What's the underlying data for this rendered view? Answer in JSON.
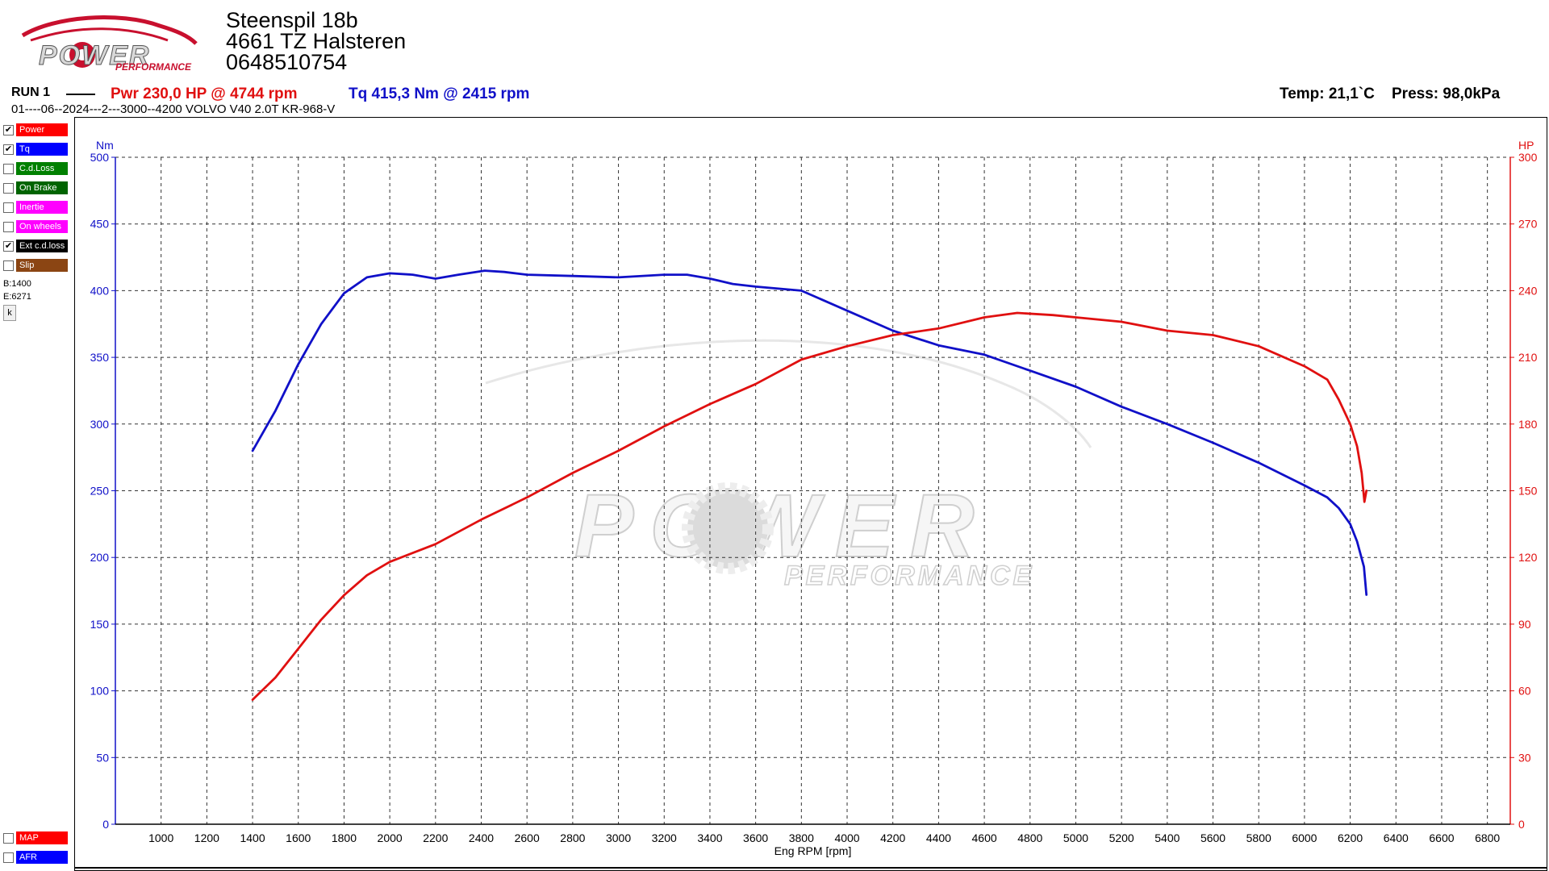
{
  "header": {
    "address": [
      "Steenspil 18b",
      "4661 TZ Halsteren",
      "0648510754"
    ],
    "logo": {
      "top": "POWER",
      "sub": "PERFORMANCE"
    },
    "run_label": "RUN 1",
    "power_summary": "Pwr  230,0 HP @ 4744 rpm",
    "torque_summary": "Tq 415,3 Nm @ 2415 rpm",
    "temp": "Temp: 21,1`C",
    "press": "Press: 98,0kPa",
    "run_info": "01----06--2024---2---3000--4200 VOLVO V40 2.0T KR-968-V"
  },
  "sidebar": {
    "items": [
      {
        "label": "Power",
        "color": "#ff0000",
        "checked": true
      },
      {
        "label": "Tq",
        "color": "#0000ff",
        "checked": true
      },
      {
        "label": "C.d.Loss",
        "color": "#008000",
        "checked": false
      },
      {
        "label": "On Brake",
        "color": "#006400",
        "checked": false
      },
      {
        "label": "Inertie",
        "color": "#ff00ff",
        "checked": false
      },
      {
        "label": "On wheels",
        "color": "#ff00ff",
        "checked": false
      },
      {
        "label": "Ext c.d.loss",
        "color": "#000000",
        "checked": true
      },
      {
        "label": "Slip",
        "color": "#8b4513",
        "checked": false
      }
    ],
    "begin": "B:1400",
    "end": "E:6271",
    "k_button": "k",
    "bottom_items": [
      {
        "label": "MAP",
        "color": "#ff0000",
        "checked": false
      },
      {
        "label": "AFR",
        "color": "#0000ff",
        "checked": false
      }
    ],
    "check_mark": "✔"
  },
  "chart_data": {
    "type": "line",
    "xlabel": "Eng RPM [rpm]",
    "ylabel_left": "Nm",
    "ylabel_right": "HP",
    "xlim": [
      800,
      6900
    ],
    "ylim_left": [
      0,
      500
    ],
    "ylim_right": [
      0,
      300
    ],
    "x_ticks": [
      1000,
      1200,
      1400,
      1600,
      1800,
      2000,
      2200,
      2400,
      2600,
      2800,
      3000,
      3200,
      3400,
      3600,
      3800,
      4000,
      4200,
      4400,
      4600,
      4800,
      5000,
      5200,
      5400,
      5600,
      5800,
      6000,
      6200,
      6400,
      6600,
      6800
    ],
    "y_ticks_left": [
      0,
      50,
      100,
      150,
      200,
      250,
      300,
      350,
      400,
      450,
      500
    ],
    "y_ticks_right": [
      0,
      30,
      60,
      90,
      120,
      150,
      180,
      210,
      240,
      270,
      300
    ],
    "grid": true,
    "series": [
      {
        "name": "Tq",
        "axis": "left",
        "color": "#1010c8",
        "x": [
          1400,
          1500,
          1600,
          1700,
          1800,
          1900,
          2000,
          2100,
          2200,
          2300,
          2415,
          2500,
          2600,
          2800,
          3000,
          3200,
          3300,
          3400,
          3500,
          3600,
          3800,
          4000,
          4200,
          4400,
          4600,
          4800,
          5000,
          5200,
          5400,
          5600,
          5800,
          6000,
          6100,
          6150,
          6200,
          6230,
          6260,
          6271
        ],
        "values": [
          280,
          310,
          345,
          375,
          398,
          410,
          413,
          412,
          409,
          412,
          415,
          414,
          412,
          411,
          410,
          412,
          412,
          409,
          405,
          403,
          400,
          385,
          370,
          359,
          352,
          340,
          328,
          313,
          300,
          286,
          271,
          254,
          245,
          237,
          225,
          212,
          193,
          172
        ]
      },
      {
        "name": "Power",
        "axis": "right",
        "color": "#e01010",
        "x": [
          1400,
          1500,
          1600,
          1700,
          1800,
          1900,
          2000,
          2200,
          2400,
          2600,
          2800,
          3000,
          3200,
          3400,
          3600,
          3800,
          4000,
          4200,
          4400,
          4600,
          4744,
          4900,
          5000,
          5200,
          5400,
          5600,
          5800,
          6000,
          6100,
          6150,
          6200,
          6230,
          6250,
          6262,
          6271
        ],
        "values": [
          56,
          66,
          79,
          92,
          103,
          112,
          118,
          126,
          137,
          147,
          158,
          168,
          179,
          189,
          198,
          209,
          215,
          220,
          223,
          228,
          230,
          229,
          228,
          226,
          222,
          220,
          215,
          206,
          200,
          191,
          180,
          170,
          158,
          145,
          150
        ]
      }
    ]
  },
  "watermark": {
    "top": "POWER",
    "sub": "PERFORMANCE"
  }
}
